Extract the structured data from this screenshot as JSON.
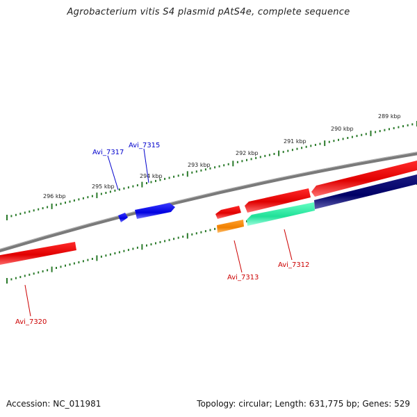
{
  "title": "Agrobacterium vitis S4 plasmid pAtS4e, complete sequence",
  "footer": {
    "accession": "Accession: NC_011981",
    "summary": "Topology: circular; Length: 631,775 bp; Genes: 529"
  },
  "colors": {
    "backbone": "#808080",
    "tick": "#2a7a2a",
    "forward_label": "#0000cc",
    "reverse_label": "#cc0000"
  },
  "scale_labels": [
    "289 kbp",
    "290 kbp",
    "291 kbp",
    "292 kbp",
    "293 kbp",
    "294 kbp",
    "295 kbp",
    "296 kbp"
  ],
  "genes": [
    {
      "name": "Avi_7317",
      "strand": "forward",
      "color": "#1a1aff"
    },
    {
      "name": "Avi_7315",
      "strand": "forward",
      "color": "#1a1aff"
    },
    {
      "name": "Avi_7313",
      "strand": "reverse",
      "color": "#ff8800"
    },
    {
      "name": "Avi_7312",
      "strand": "reverse",
      "color": "#33e6a0"
    },
    {
      "name": "Avi_7320",
      "strand": "reverse",
      "color": "#ee1111"
    }
  ]
}
